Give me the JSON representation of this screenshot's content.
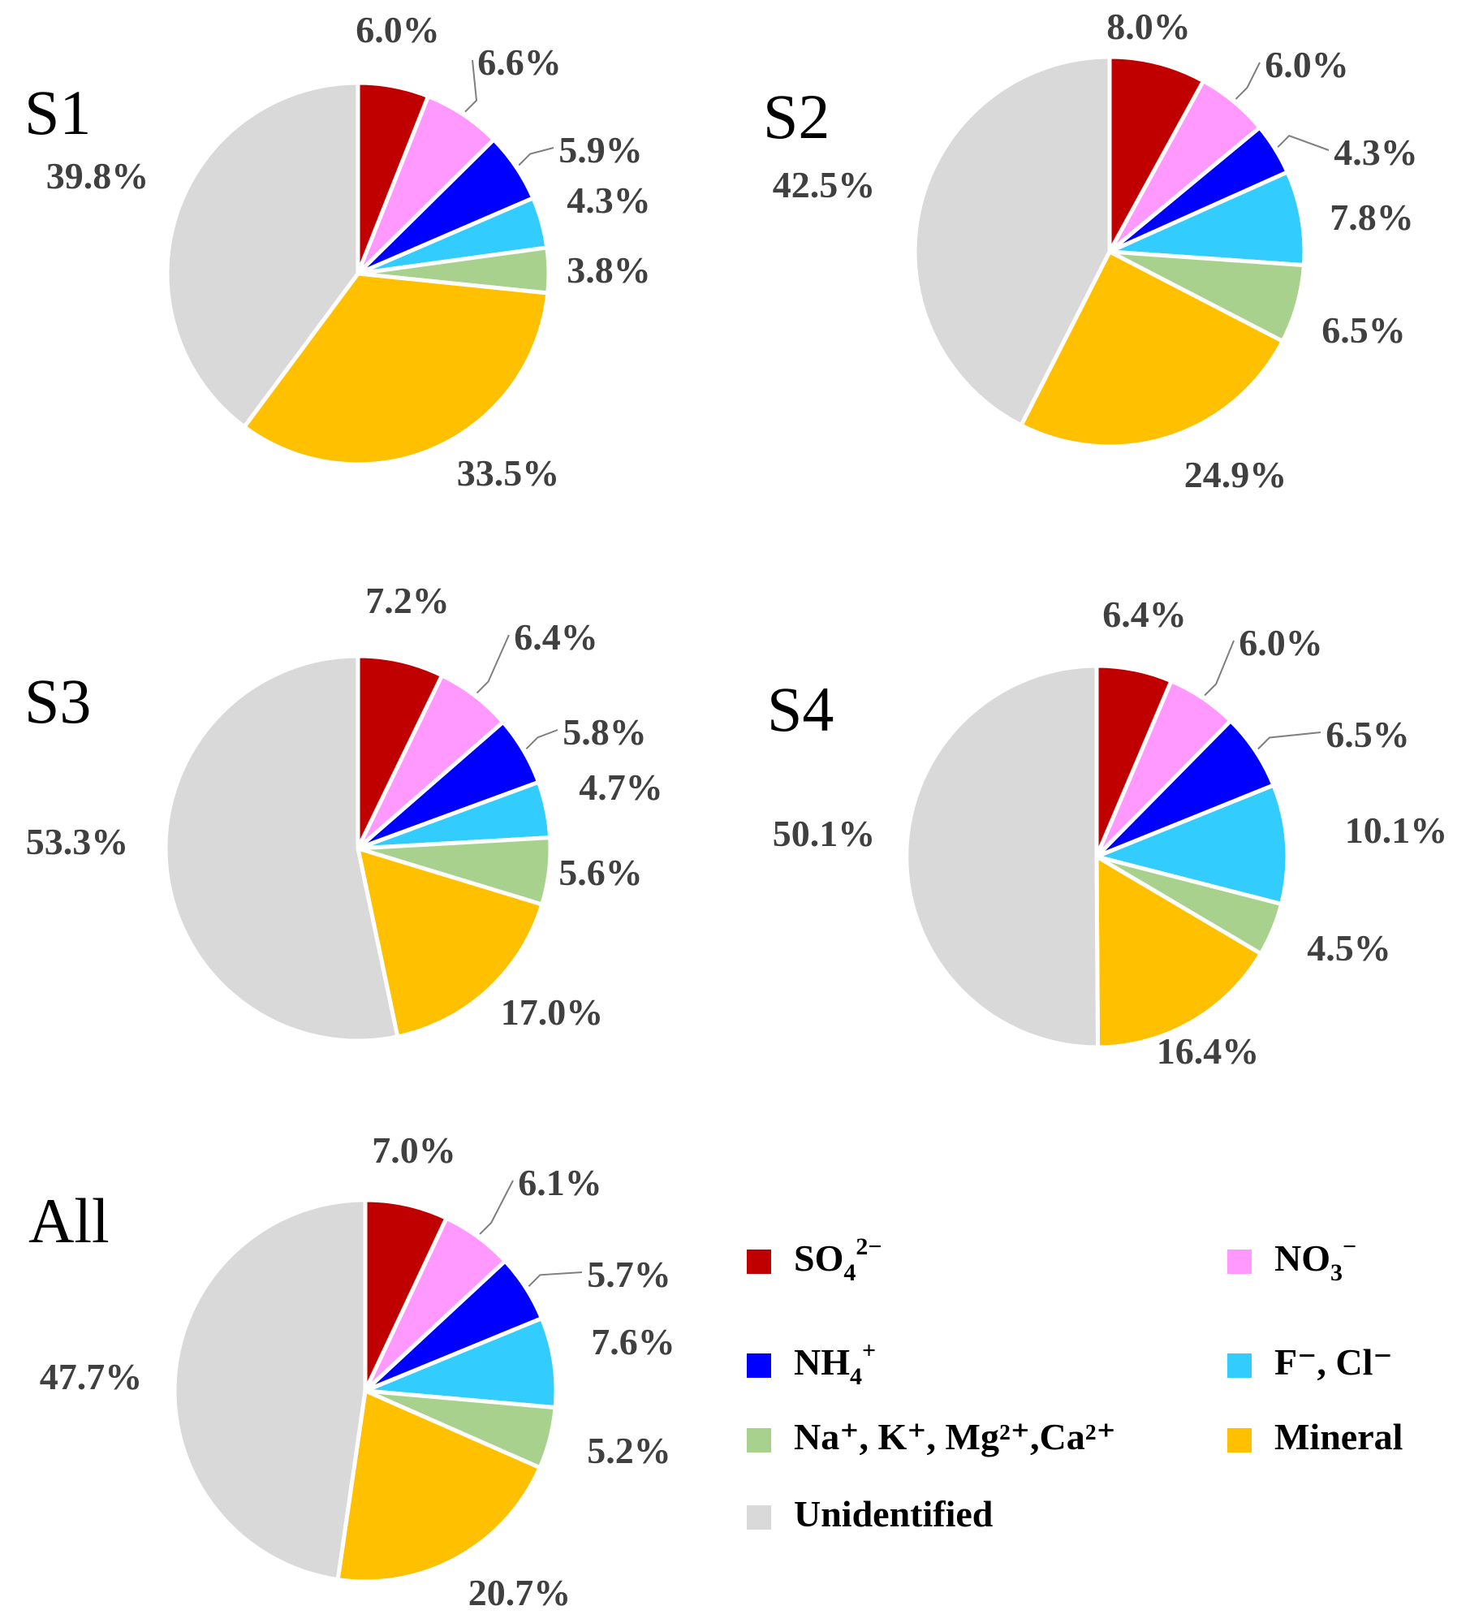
{
  "legend": {
    "items": [
      {
        "key": "so4",
        "label": "SO",
        "sub": "4",
        "sup": "2−",
        "color": "#C00000"
      },
      {
        "key": "no3",
        "label": "NO",
        "sub": "3",
        "sup": "−",
        "color": "#FF99FF"
      },
      {
        "key": "nh4",
        "label": "NH",
        "sub": "4",
        "sup": "+",
        "color": "#0000FF"
      },
      {
        "key": "fcl",
        "label": "F⁻, Cl⁻",
        "color": "#33CCFF"
      },
      {
        "key": "cations",
        "label": "Na⁺, K⁺, Mg²⁺,Ca²⁺",
        "color": "#A9D18E"
      },
      {
        "key": "mineral",
        "label": "Mineral",
        "color": "#FFC000"
      },
      {
        "key": "unidentified",
        "label": "Unidentified",
        "color": "#D9D9D9"
      }
    ]
  },
  "chart_data": [
    {
      "type": "pie",
      "title": "S1",
      "categories": [
        "SO₄²⁻",
        "NO₃⁻",
        "NH₄⁺",
        "F⁻, Cl⁻",
        "Na⁺, K⁺, Mg²⁺,Ca²⁺",
        "Mineral",
        "Unidentified"
      ],
      "values": [
        6.0,
        6.6,
        5.9,
        4.3,
        3.8,
        33.5,
        39.8
      ],
      "labels": [
        "6.0%",
        "6.6%",
        "5.9%",
        "4.3%",
        "3.8%",
        "33.5%",
        "39.8%"
      ]
    },
    {
      "type": "pie",
      "title": "S2",
      "categories": [
        "SO₄²⁻",
        "NO₃⁻",
        "NH₄⁺",
        "F⁻, Cl⁻",
        "Na⁺, K⁺, Mg²⁺,Ca²⁺",
        "Mineral",
        "Unidentified"
      ],
      "values": [
        8.0,
        6.0,
        4.3,
        7.8,
        6.5,
        24.9,
        42.5
      ],
      "labels": [
        "8.0%",
        "6.0%",
        "4.3%",
        "7.8%",
        "6.5%",
        "24.9%",
        "42.5%"
      ]
    },
    {
      "type": "pie",
      "title": "S3",
      "categories": [
        "SO₄²⁻",
        "NO₃⁻",
        "NH₄⁺",
        "F⁻, Cl⁻",
        "Na⁺, K⁺, Mg²⁺,Ca²⁺",
        "Mineral",
        "Unidentified"
      ],
      "values": [
        7.2,
        6.4,
        5.8,
        4.7,
        5.6,
        17.0,
        53.3
      ],
      "labels": [
        "7.2%",
        "6.4%",
        "5.8%",
        "4.7%",
        "5.6%",
        "17.0%",
        "53.3%"
      ]
    },
    {
      "type": "pie",
      "title": "S4",
      "categories": [
        "SO₄²⁻",
        "NO₃⁻",
        "NH₄⁺",
        "F⁻, Cl⁻",
        "Na⁺, K⁺, Mg²⁺,Ca²⁺",
        "Mineral",
        "Unidentified"
      ],
      "values": [
        6.4,
        6.0,
        6.5,
        10.1,
        4.5,
        16.4,
        50.1
      ],
      "labels": [
        "6.4%",
        "6.0%",
        "6.5%",
        "10.1%",
        "4.5%",
        "16.4%",
        "50.1%"
      ]
    },
    {
      "type": "pie",
      "title": "All",
      "categories": [
        "SO₄²⁻",
        "NO₃⁻",
        "NH₄⁺",
        "F⁻, Cl⁻",
        "Na⁺, K⁺, Mg²⁺,Ca²⁺",
        "Mineral",
        "Unidentified"
      ],
      "values": [
        7.0,
        6.1,
        5.7,
        7.6,
        5.2,
        20.7,
        47.7
      ],
      "labels": [
        "7.0%",
        "6.1%",
        "5.7%",
        "7.6%",
        "5.2%",
        "20.7%",
        "47.7%"
      ]
    }
  ]
}
